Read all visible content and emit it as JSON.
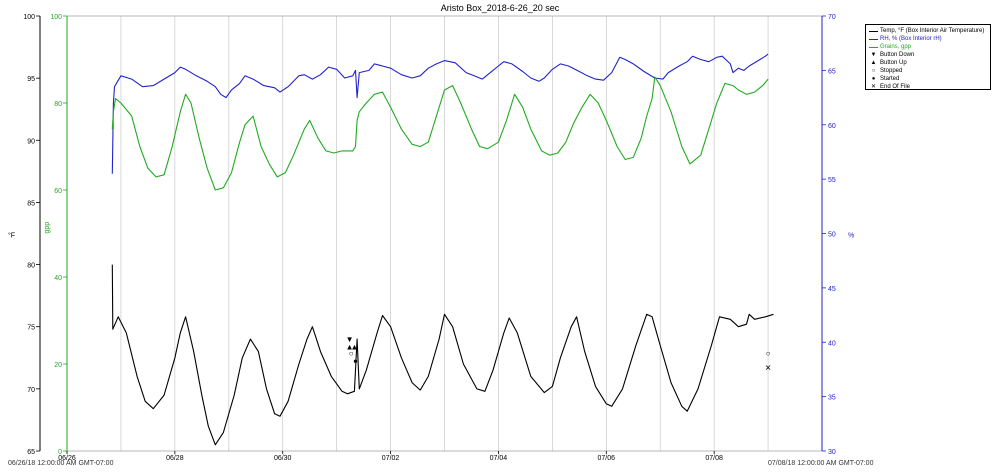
{
  "chart_data": {
    "type": "line",
    "title": "Aristo Box_2018-6-26_20 sec",
    "x_ticks": [
      "06/26",
      "06/28",
      "06/30",
      "07/02",
      "07/04",
      "07/06",
      "07/08"
    ],
    "x_range": [
      "06/26",
      "07/08"
    ],
    "range_start_label": "06/26/18 12:00:00 AM GMT-07:00",
    "range_end_label": "07/08/18 12:00:00 AM GMT-07:00",
    "axes": {
      "temp": {
        "label": "°F",
        "range": [
          65,
          100
        ],
        "ticks": [
          65,
          70,
          75,
          80,
          85,
          90,
          95,
          100
        ],
        "color": "#000000"
      },
      "gpp": {
        "label": "gpp",
        "range": [
          0,
          100
        ],
        "ticks": [
          0,
          20,
          40,
          60,
          80,
          100
        ],
        "color": "#22aa22"
      },
      "rh": {
        "label": "%",
        "range": [
          30,
          70
        ],
        "ticks": [
          30,
          35,
          40,
          45,
          50,
          55,
          60,
          65,
          70
        ],
        "color": "#2222cc"
      }
    },
    "grid": "vertical",
    "legend_position": "top-right",
    "series": [
      {
        "name": "Temp, °F (Box Interior Air Temperature)",
        "axis": "temp",
        "color": "#000000",
        "points": [
          [
            0.84,
            80
          ],
          [
            0.85,
            74.8
          ],
          [
            0.95,
            75.8
          ],
          [
            1.1,
            74.5
          ],
          [
            1.3,
            71
          ],
          [
            1.45,
            69
          ],
          [
            1.6,
            68.4
          ],
          [
            1.8,
            69.5
          ],
          [
            2.0,
            72.5
          ],
          [
            2.1,
            74.5
          ],
          [
            2.2,
            75.8
          ],
          [
            2.35,
            73
          ],
          [
            2.5,
            69.5
          ],
          [
            2.62,
            67
          ],
          [
            2.75,
            65.5
          ],
          [
            2.9,
            66.5
          ],
          [
            3.1,
            69.5
          ],
          [
            3.25,
            72.5
          ],
          [
            3.4,
            74
          ],
          [
            3.55,
            73
          ],
          [
            3.7,
            70
          ],
          [
            3.85,
            68
          ],
          [
            3.95,
            67.8
          ],
          [
            4.1,
            69
          ],
          [
            4.3,
            72
          ],
          [
            4.45,
            74
          ],
          [
            4.55,
            75
          ],
          [
            4.7,
            73
          ],
          [
            4.9,
            71
          ],
          [
            5.1,
            69.8
          ],
          [
            5.2,
            69.6
          ],
          [
            5.33,
            69.8
          ],
          [
            5.38,
            74
          ],
          [
            5.42,
            70
          ],
          [
            5.55,
            71.5
          ],
          [
            5.75,
            74.5
          ],
          [
            5.85,
            75.9
          ],
          [
            6.0,
            75
          ],
          [
            6.2,
            72.5
          ],
          [
            6.4,
            70.5
          ],
          [
            6.55,
            69.9
          ],
          [
            6.7,
            71
          ],
          [
            6.9,
            74
          ],
          [
            7.0,
            76
          ],
          [
            7.15,
            75
          ],
          [
            7.35,
            72
          ],
          [
            7.6,
            70
          ],
          [
            7.75,
            69.8
          ],
          [
            7.9,
            71.5
          ],
          [
            8.1,
            74.5
          ],
          [
            8.2,
            75.7
          ],
          [
            8.35,
            74.5
          ],
          [
            8.6,
            71
          ],
          [
            8.85,
            69.7
          ],
          [
            9.0,
            70.2
          ],
          [
            9.15,
            72.5
          ],
          [
            9.35,
            75
          ],
          [
            9.45,
            75.8
          ],
          [
            9.6,
            73
          ],
          [
            9.8,
            70.2
          ],
          [
            10.0,
            68.8
          ],
          [
            10.1,
            68.6
          ],
          [
            10.3,
            70
          ],
          [
            10.55,
            73.5
          ],
          [
            10.75,
            76
          ],
          [
            10.85,
            75.8
          ],
          [
            11.0,
            73.5
          ],
          [
            11.2,
            70.5
          ],
          [
            11.4,
            68.6
          ],
          [
            11.5,
            68.2
          ],
          [
            11.7,
            70
          ],
          [
            11.95,
            73.5
          ],
          [
            12.1,
            75.8
          ],
          [
            12.3,
            75.6
          ],
          [
            12.45,
            75
          ],
          [
            12.6,
            75.2
          ],
          [
            12.65,
            76
          ],
          [
            12.75,
            75.6
          ],
          [
            12.95,
            75.8
          ],
          [
            13.1,
            76
          ]
        ]
      },
      {
        "name": "RH, % (Box Interior rH)",
        "axis": "rh",
        "color": "#2222cc",
        "points": [
          [
            0.84,
            55.5
          ],
          [
            0.86,
            62
          ],
          [
            0.88,
            63.5
          ],
          [
            1.0,
            64.5
          ],
          [
            1.2,
            64.2
          ],
          [
            1.4,
            63.5
          ],
          [
            1.6,
            63.6
          ],
          [
            1.8,
            64.2
          ],
          [
            2.0,
            64.8
          ],
          [
            2.1,
            65.3
          ],
          [
            2.2,
            65.1
          ],
          [
            2.4,
            64.5
          ],
          [
            2.6,
            64
          ],
          [
            2.75,
            63.5
          ],
          [
            2.85,
            62.8
          ],
          [
            2.95,
            62.5
          ],
          [
            3.05,
            63.2
          ],
          [
            3.2,
            63.8
          ],
          [
            3.3,
            64.5
          ],
          [
            3.45,
            64.2
          ],
          [
            3.65,
            63.6
          ],
          [
            3.85,
            63.4
          ],
          [
            3.95,
            63
          ],
          [
            4.1,
            63.5
          ],
          [
            4.3,
            64.5
          ],
          [
            4.4,
            64.6
          ],
          [
            4.55,
            64.2
          ],
          [
            4.7,
            64.6
          ],
          [
            4.85,
            65.3
          ],
          [
            5.0,
            65.1
          ],
          [
            5.15,
            64.3
          ],
          [
            5.3,
            64.5
          ],
          [
            5.35,
            65
          ],
          [
            5.38,
            62.5
          ],
          [
            5.42,
            64.8
          ],
          [
            5.6,
            65
          ],
          [
            5.7,
            65.6
          ],
          [
            5.85,
            65.4
          ],
          [
            6.0,
            65.2
          ],
          [
            6.2,
            64.6
          ],
          [
            6.4,
            64.3
          ],
          [
            6.55,
            64.5
          ],
          [
            6.7,
            65.2
          ],
          [
            6.85,
            65.6
          ],
          [
            7.0,
            65.9
          ],
          [
            7.2,
            65.7
          ],
          [
            7.4,
            64.8
          ],
          [
            7.55,
            64.5
          ],
          [
            7.7,
            64.2
          ],
          [
            7.85,
            64.8
          ],
          [
            8.0,
            65.4
          ],
          [
            8.1,
            65.8
          ],
          [
            8.25,
            65.6
          ],
          [
            8.45,
            64.9
          ],
          [
            8.6,
            64.3
          ],
          [
            8.75,
            64
          ],
          [
            8.85,
            64.3
          ],
          [
            9.0,
            65.1
          ],
          [
            9.15,
            65.6
          ],
          [
            9.3,
            65.4
          ],
          [
            9.5,
            64.9
          ],
          [
            9.65,
            64.5
          ],
          [
            9.8,
            64.2
          ],
          [
            9.95,
            64.1
          ],
          [
            10.1,
            64.8
          ],
          [
            10.25,
            66.2
          ],
          [
            10.35,
            66
          ],
          [
            10.5,
            65.6
          ],
          [
            10.7,
            64.9
          ],
          [
            10.9,
            64.3
          ],
          [
            11.05,
            64.2
          ],
          [
            11.15,
            64.8
          ],
          [
            11.35,
            65.4
          ],
          [
            11.5,
            65.8
          ],
          [
            11.6,
            66.3
          ],
          [
            11.75,
            66
          ],
          [
            11.9,
            65.8
          ],
          [
            12.05,
            66.2
          ],
          [
            12.15,
            66.3
          ],
          [
            12.3,
            65.6
          ],
          [
            12.35,
            64.8
          ],
          [
            12.45,
            65.2
          ],
          [
            12.55,
            65
          ],
          [
            12.65,
            65.4
          ],
          [
            12.85,
            66
          ],
          [
            12.95,
            66.3
          ],
          [
            13.0,
            66.5
          ]
        ]
      },
      {
        "name": "Grains, gpp",
        "axis": "gpp",
        "color": "#22aa22",
        "points": [
          [
            0.84,
            74
          ],
          [
            0.86,
            78
          ],
          [
            0.9,
            81
          ],
          [
            1.0,
            80
          ],
          [
            1.2,
            77
          ],
          [
            1.35,
            70
          ],
          [
            1.5,
            65
          ],
          [
            1.65,
            63
          ],
          [
            1.8,
            63.5
          ],
          [
            1.95,
            70
          ],
          [
            2.1,
            78
          ],
          [
            2.2,
            82
          ],
          [
            2.3,
            80
          ],
          [
            2.45,
            72
          ],
          [
            2.6,
            65
          ],
          [
            2.75,
            60
          ],
          [
            2.9,
            60.5
          ],
          [
            3.05,
            64
          ],
          [
            3.2,
            71
          ],
          [
            3.3,
            75
          ],
          [
            3.45,
            77
          ],
          [
            3.6,
            70
          ],
          [
            3.75,
            66
          ],
          [
            3.9,
            63
          ],
          [
            4.05,
            64
          ],
          [
            4.2,
            68
          ],
          [
            4.4,
            74
          ],
          [
            4.5,
            76
          ],
          [
            4.65,
            72
          ],
          [
            4.8,
            69
          ],
          [
            4.95,
            68.5
          ],
          [
            5.1,
            69
          ],
          [
            5.3,
            69
          ],
          [
            5.35,
            70
          ],
          [
            5.38,
            76
          ],
          [
            5.42,
            78
          ],
          [
            5.55,
            80
          ],
          [
            5.7,
            82
          ],
          [
            5.85,
            82.5
          ],
          [
            6.0,
            79
          ],
          [
            6.2,
            74
          ],
          [
            6.4,
            70.5
          ],
          [
            6.55,
            70
          ],
          [
            6.7,
            71
          ],
          [
            6.85,
            77
          ],
          [
            7.0,
            83
          ],
          [
            7.15,
            84
          ],
          [
            7.3,
            80
          ],
          [
            7.5,
            74
          ],
          [
            7.65,
            70
          ],
          [
            7.8,
            69.5
          ],
          [
            8.0,
            71
          ],
          [
            8.15,
            76
          ],
          [
            8.3,
            82
          ],
          [
            8.45,
            79
          ],
          [
            8.6,
            74
          ],
          [
            8.8,
            69
          ],
          [
            8.95,
            68
          ],
          [
            9.1,
            68.5
          ],
          [
            9.25,
            71
          ],
          [
            9.4,
            75.5
          ],
          [
            9.55,
            79
          ],
          [
            9.7,
            82
          ],
          [
            9.85,
            80
          ],
          [
            10.0,
            76
          ],
          [
            10.2,
            70
          ],
          [
            10.35,
            67
          ],
          [
            10.5,
            67.5
          ],
          [
            10.65,
            72
          ],
          [
            10.75,
            77
          ],
          [
            10.85,
            81
          ],
          [
            10.9,
            86
          ],
          [
            11.0,
            84
          ],
          [
            11.2,
            78
          ],
          [
            11.4,
            70
          ],
          [
            11.55,
            66
          ],
          [
            11.75,
            68
          ],
          [
            11.9,
            74
          ],
          [
            12.05,
            80
          ],
          [
            12.2,
            84.5
          ],
          [
            12.35,
            84
          ],
          [
            12.45,
            83
          ],
          [
            12.6,
            82
          ],
          [
            12.75,
            82.5
          ],
          [
            12.9,
            84
          ],
          [
            13.0,
            85.5
          ]
        ]
      }
    ],
    "legend": [
      {
        "label": "Temp, °F (Box Interior Air Temperature)",
        "kind": "line",
        "color": "#000000"
      },
      {
        "label": "RH, % (Box Interior rH)",
        "kind": "line",
        "color": "#2222cc"
      },
      {
        "label": "Grains, gpp",
        "kind": "line",
        "color": "#22aa22"
      },
      {
        "label": "Button Down",
        "kind": "glyph",
        "glyph": "▼"
      },
      {
        "label": "Button Up",
        "kind": "glyph",
        "glyph": "▲"
      },
      {
        "label": "Stopped",
        "kind": "glyph",
        "glyph": "○"
      },
      {
        "label": "Started",
        "kind": "glyph",
        "glyph": "●"
      },
      {
        "label": "End Of File",
        "kind": "glyph",
        "glyph": "✕"
      }
    ],
    "events": [
      {
        "type": "Button Down",
        "glyph": "▼",
        "x": 5.24,
        "temp": 74.0
      },
      {
        "type": "Button Up",
        "glyph": "▲",
        "x": 5.24,
        "temp": 73.4
      },
      {
        "type": "Button Up",
        "glyph": "▲",
        "x": 5.33,
        "temp": 73.4
      },
      {
        "type": "Stopped",
        "glyph": "○",
        "x": 5.27,
        "temp": 72.9
      },
      {
        "type": "Started",
        "glyph": "●",
        "x": 5.35,
        "temp": 72.3
      },
      {
        "type": "Stopped",
        "glyph": "○",
        "x": 13.0,
        "temp": 72.9
      },
      {
        "type": "End Of File",
        "glyph": "✕",
        "x": 13.0,
        "temp": 71.7
      }
    ]
  }
}
